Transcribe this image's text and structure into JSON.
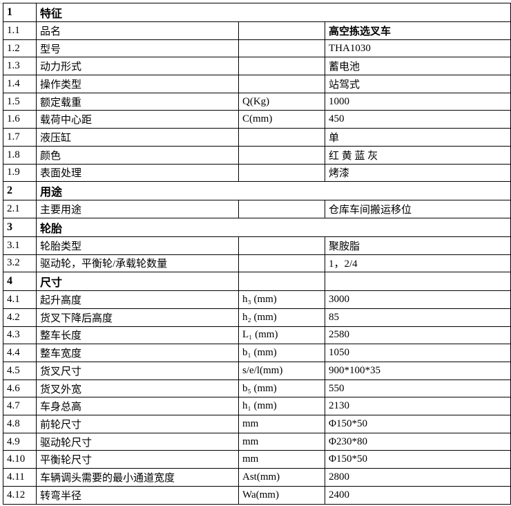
{
  "rows": [
    {
      "section": true,
      "no": "1",
      "name": "特征",
      "span": true
    },
    {
      "no": "1.1",
      "name": "品名",
      "unit": "",
      "value": "高空拣选叉车",
      "bold_value": true
    },
    {
      "no": "1.2",
      "name": "型号",
      "unit": "",
      "value": "THA1030"
    },
    {
      "no": "1.3",
      "name": "动力形式",
      "unit": "",
      "value": "蓄电池"
    },
    {
      "no": "1.4",
      "name": "操作类型",
      "unit": "",
      "value": "站驾式"
    },
    {
      "no": "1.5",
      "name": "额定载重",
      "unit": "Q(Kg)",
      "value": "1000"
    },
    {
      "no": "1.6",
      "name": "载荷中心距",
      "unit": "C(mm)",
      "value": "450"
    },
    {
      "no": "1.7",
      "name": "液压缸",
      "unit": "",
      "value": "单"
    },
    {
      "no": "1.8",
      "name": "颜色",
      "unit": "",
      "value": "红 黄 蓝 灰"
    },
    {
      "no": "1.9",
      "name": "表面处理",
      "unit": "",
      "value": "烤漆"
    },
    {
      "section": true,
      "no": "2",
      "name": "用途",
      "span": true
    },
    {
      "no": "2.1",
      "name": "主要用途",
      "unit": "",
      "value": "仓库车间搬运移位"
    },
    {
      "section": true,
      "no": "3",
      "name": "轮胎",
      "span": true
    },
    {
      "no": "3.1",
      "name": "轮胎类型",
      "unit": "",
      "value": "聚胺脂"
    },
    {
      "no": "3.2",
      "name": "驱动轮，平衡轮/承载轮数量",
      "unit": "",
      "value": "1，2/4"
    },
    {
      "section": true,
      "no": "4",
      "name": "尺寸",
      "span": false
    },
    {
      "no": "4.1",
      "name": "起升高度",
      "unit": "h₃ (mm)",
      "value": "3000"
    },
    {
      "no": "4.2",
      "name": "货叉下降后高度",
      "unit": "h₂ (mm)",
      "value": "85"
    },
    {
      "no": "4.3",
      "name": "整车长度",
      "unit": "L₁ (mm)",
      "value": "2580"
    },
    {
      "no": "4.4",
      "name": "整车宽度",
      "unit": "b₁ (mm)",
      "value": "1050"
    },
    {
      "no": "4.5",
      "name": "货叉尺寸",
      "unit": "s/e/l(mm)",
      "value": "900*100*35"
    },
    {
      "no": "4.6",
      "name": "货叉外宽",
      "unit": "b₅ (mm)",
      "value": "550"
    },
    {
      "no": "4.7",
      "name": "车身总高",
      "unit": "h₁ (mm)",
      "value": "2130"
    },
    {
      "no": "4.8",
      "name": "前轮尺寸",
      "unit": "mm",
      "value": "Φ150*50"
    },
    {
      "no": "4.9",
      "name": "驱动轮尺寸",
      "unit": "mm",
      "value": "Φ230*80"
    },
    {
      "no": "4.10",
      "name": "平衡轮尺寸",
      "unit": "mm",
      "value": "Φ150*50"
    },
    {
      "no": "4.11",
      "name": "车辆调头需要的最小通道宽度",
      "unit": "Ast(mm)",
      "value": "2800"
    },
    {
      "no": "4.12",
      "name": "转弯半径",
      "unit": "Wa(mm)",
      "value": "2400"
    }
  ]
}
